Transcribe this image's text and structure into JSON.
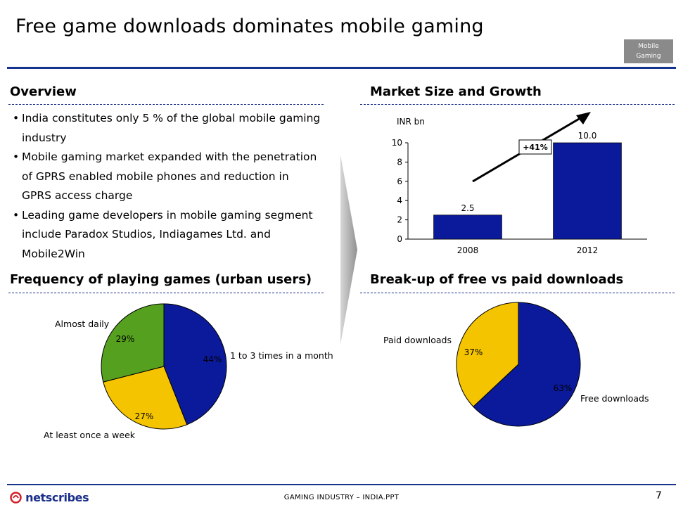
{
  "slide": {
    "title": "Free game downloads dominates mobile gaming",
    "tag_line1": "Mobile",
    "tag_line2": "Gaming"
  },
  "overview": {
    "title": "Overview",
    "bullets": [
      "India constitutes only 5 % of the global mobile gaming industry",
      "Mobile gaming market expanded with the penetration of GPRS enabled mobile phones and reduction in GPRS access charge",
      "Leading game developers in mobile gaming segment include Paradox Studios, Indiagames Ltd. and Mobile2Win"
    ]
  },
  "market": {
    "title": "Market Size and Growth",
    "growth_label": "+41%"
  },
  "frequency": {
    "title": "Frequency of playing games (urban users)"
  },
  "breakup": {
    "title": "Break-up of free vs paid downloads"
  },
  "footer": {
    "text": "GAMING INDUSTRY – INDIA.PPT",
    "page": "7",
    "logo_text": "netscribes"
  },
  "colors": {
    "blue": "#0a1a9a",
    "green": "#55a01e",
    "yellow": "#f5c400",
    "rule": "#16338f"
  },
  "chart_data": [
    {
      "type": "bar",
      "ylabel": "INR bn",
      "categories": [
        "2008",
        "2012"
      ],
      "values": [
        2.5,
        10.0
      ],
      "value_labels": [
        "2.5",
        "10.0"
      ],
      "ylim": [
        0,
        10
      ],
      "yticks": [
        "0",
        "2",
        "4",
        "6",
        "8",
        "10"
      ],
      "color": "#0a1a9a"
    },
    {
      "type": "pie",
      "slices": [
        {
          "label": "1 to 3 times in a month",
          "value": 44,
          "pct": "44%",
          "color": "#0a1a9a"
        },
        {
          "label": "At least once a week",
          "value": 27,
          "pct": "27%",
          "color": "#f5c400"
        },
        {
          "label": "Almost daily",
          "value": 29,
          "pct": "29%",
          "color": "#55a01e"
        }
      ]
    },
    {
      "type": "pie",
      "slices": [
        {
          "label": "Free downloads",
          "value": 63,
          "pct": "63%",
          "color": "#0a1a9a"
        },
        {
          "label": "Paid downloads",
          "value": 37,
          "pct": "37%",
          "color": "#f5c400"
        }
      ]
    }
  ]
}
